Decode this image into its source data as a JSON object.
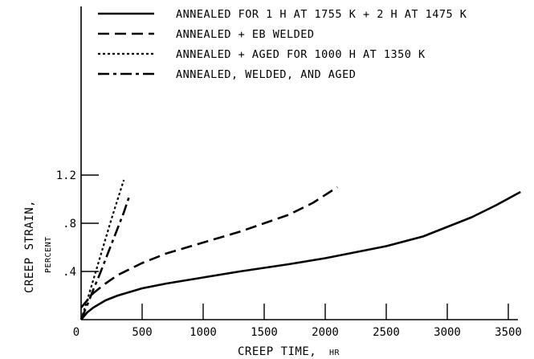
{
  "chart_data": {
    "type": "line",
    "title": "",
    "xlabel": "CREEP TIME, HR",
    "xlabel_main": "CREEP TIME,",
    "xlabel_unit": "HR",
    "ylabel_main": "CREEP STRAIN,",
    "ylabel_unit": "PERCENT",
    "xlim": [
      0,
      3500
    ],
    "ylim": [
      0,
      1.2
    ],
    "x_ticks": [
      0,
      500,
      1000,
      1500,
      2000,
      2500,
      3000,
      3500
    ],
    "x_tick_labels": [
      "0",
      "500",
      "1000",
      "1500",
      "2000",
      "2500",
      "3000",
      "3500"
    ],
    "y_ticks": [
      0.4,
      0.8,
      1.2
    ],
    "y_tick_labels": [
      ".4",
      ".8",
      "1.2"
    ],
    "grid": false,
    "legend_position": "top",
    "series": [
      {
        "name": "ANNEALED FOR 1 H AT 1755 K + 2 H AT 1475 K",
        "style": "solid",
        "x": [
          0,
          50,
          100,
          200,
          300,
          500,
          700,
          1000,
          1300,
          1500,
          1700,
          2000,
          2300,
          2500,
          2800,
          3000,
          3200,
          3400,
          3600
        ],
        "y": [
          0,
          0.06,
          0.1,
          0.16,
          0.2,
          0.26,
          0.3,
          0.35,
          0.4,
          0.43,
          0.46,
          0.51,
          0.57,
          0.61,
          0.69,
          0.77,
          0.85,
          0.95,
          1.06
        ]
      },
      {
        "name": "ANNEALED + EB WELDED",
        "style": "dash",
        "x": [
          0,
          50,
          100,
          200,
          300,
          500,
          700,
          1000,
          1300,
          1500,
          1700,
          1900,
          2100
        ],
        "y": [
          0.1,
          0.16,
          0.22,
          0.3,
          0.37,
          0.47,
          0.55,
          0.64,
          0.73,
          0.8,
          0.87,
          0.97,
          1.1
        ]
      },
      {
        "name": "ANNEALED + AGED FOR 1000 H AT 1350 K",
        "style": "dot",
        "x": [
          0,
          50,
          100,
          150,
          200,
          250,
          300,
          350
        ],
        "y": [
          0,
          0.16,
          0.33,
          0.5,
          0.67,
          0.84,
          1.0,
          1.16
        ]
      },
      {
        "name": "ANNEALED, WELDED, AND AGED",
        "style": "dashdot",
        "x": [
          0,
          50,
          100,
          150,
          200,
          250,
          300,
          350,
          400
        ],
        "y": [
          0,
          0.12,
          0.25,
          0.37,
          0.5,
          0.63,
          0.76,
          0.89,
          1.04
        ]
      }
    ]
  }
}
